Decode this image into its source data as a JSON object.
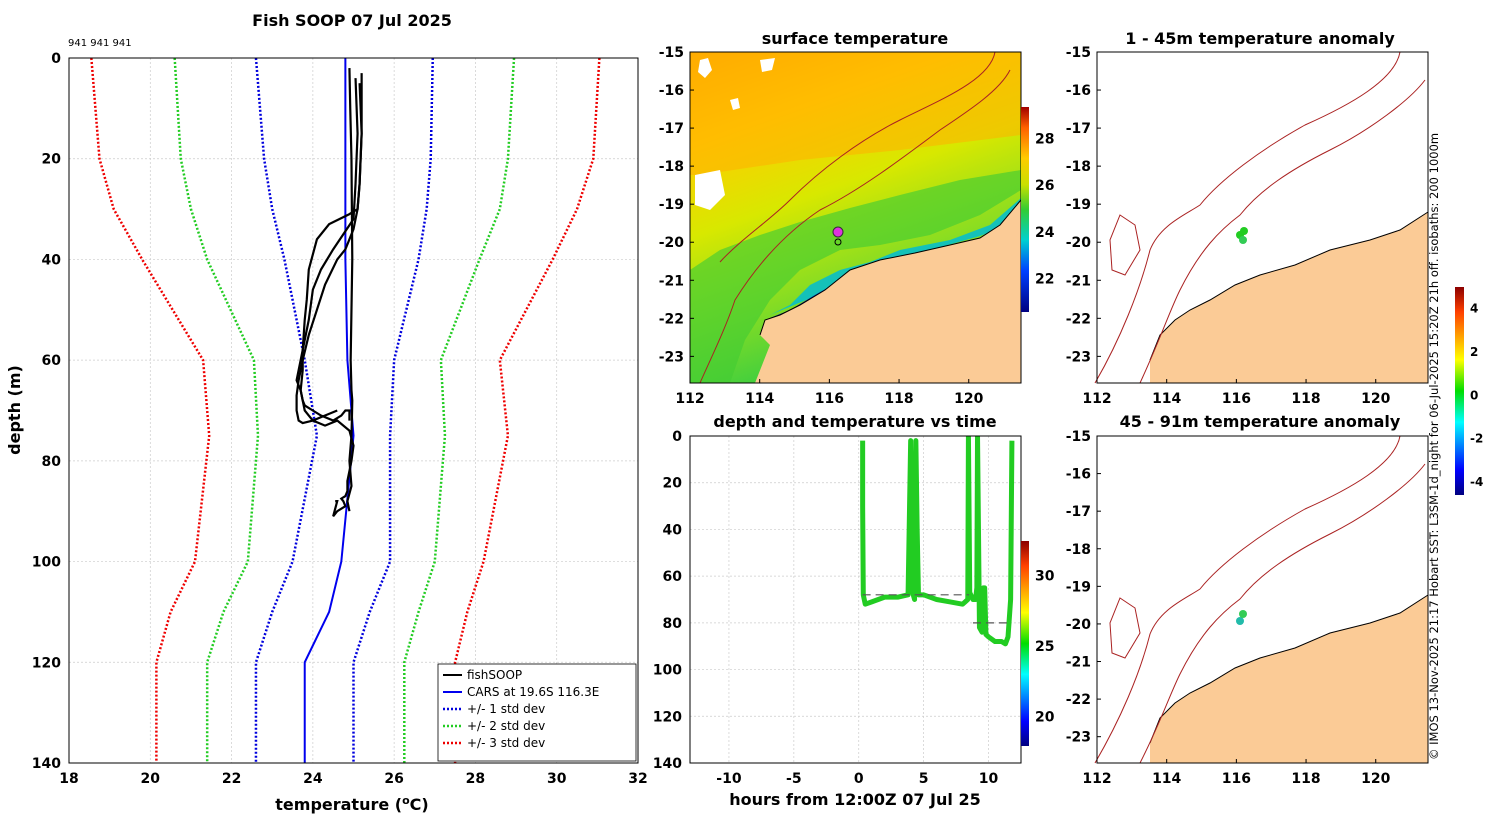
{
  "colors": {
    "land": "#fbcb96",
    "cars": "#0000ee",
    "std1": "#0000dd",
    "std2": "#22cc22",
    "std3": "#ee0000",
    "fish": "#000000",
    "track": "#22cc22",
    "isobath": "#aa2222"
  },
  "page": {
    "main_title": "Fish SOOP 07 Jul 2025",
    "ids": "941 941 941",
    "side_caption": "© IMOS 13-Nov-2025 21:17 Hobart SST: L3SM-1d_night for 06-Jul-2025 15:20Z 21h off. isobaths: 200  1000m"
  },
  "chart_data": [
    {
      "id": "profile",
      "type": "line",
      "title": "Fish SOOP 07 Jul 2025",
      "xlabel": "temperature (°C)",
      "xlabel_main": "temperature (",
      "xlabel_sup": "o",
      "xlabel_end": "C)",
      "ylabel": "depth (m)",
      "xlim": [
        18,
        32
      ],
      "ylim": [
        0,
        140
      ],
      "y_reversed": true,
      "xticks": [
        "18",
        "20",
        "22",
        "24",
        "26",
        "28",
        "30",
        "32"
      ],
      "yticks": [
        "0",
        "20",
        "40",
        "60",
        "80",
        "100",
        "120",
        "140"
      ],
      "legend": [
        "fishSOOP",
        "CARS at 19.6S 116.3E",
        "+/- 1 std dev",
        "+/- 2 std dev",
        "+/- 3 std dev"
      ],
      "legend_position": "bottom-right",
      "depths": [
        0,
        20,
        30,
        40,
        60,
        75,
        100,
        110,
        120,
        140
      ],
      "series": [
        {
          "name": "CARS",
          "values": [
            24.8,
            24.8,
            24.8,
            24.8,
            24.85,
            25.0,
            24.7,
            24.4,
            23.8,
            23.8
          ]
        },
        {
          "name": "-1 std",
          "values": [
            22.6,
            22.8,
            23.0,
            23.3,
            23.8,
            24.1,
            23.5,
            23.0,
            22.6,
            22.6
          ]
        },
        {
          "name": "+1 std",
          "values": [
            26.95,
            26.9,
            26.8,
            26.6,
            26.0,
            25.9,
            25.9,
            25.4,
            25.0,
            25.0
          ]
        },
        {
          "name": "-2 std",
          "values": [
            20.6,
            20.75,
            21.0,
            21.4,
            22.55,
            22.65,
            22.4,
            21.8,
            21.4,
            21.4
          ]
        },
        {
          "name": "+2 std",
          "values": [
            28.95,
            28.8,
            28.6,
            28.1,
            27.15,
            27.25,
            27.0,
            26.6,
            26.25,
            26.25
          ]
        },
        {
          "name": "-3 std",
          "values": [
            18.55,
            18.75,
            19.1,
            19.8,
            21.3,
            21.45,
            21.1,
            20.5,
            20.15,
            20.15
          ]
        },
        {
          "name": "+3 std",
          "values": [
            31.05,
            30.9,
            30.5,
            29.9,
            28.6,
            28.8,
            28.2,
            27.8,
            27.5,
            27.5
          ]
        }
      ],
      "fish_casts": [
        {
          "t": [
            24.9,
            24.92,
            24.95,
            24.96,
            24.97,
            24.95,
            24.93,
            24.95,
            24.97,
            24.96,
            24.95,
            24.9,
            24.95,
            24.85,
            24.9
          ],
          "d": [
            2,
            10,
            20,
            30,
            40,
            50,
            60,
            66,
            68,
            72,
            75,
            80,
            85,
            88,
            90
          ]
        },
        {
          "t": [
            25.2,
            25.2,
            25.15,
            25.1,
            24.9,
            24.4,
            24.1,
            23.9,
            23.85,
            23.8,
            23.75,
            23.75,
            23.7,
            23.75,
            23.8,
            24.0,
            24.2,
            24.5,
            24.7,
            24.8,
            24.9,
            24.9
          ],
          "d": [
            3,
            15,
            25,
            30,
            31,
            33,
            36,
            42,
            48,
            52,
            58,
            62,
            66,
            68,
            69,
            70,
            71,
            72,
            71,
            70,
            70,
            72
          ]
        },
        {
          "t": [
            25.05,
            25.1,
            25.05,
            25.0,
            24.5,
            24.2,
            24.0,
            23.9,
            23.8,
            23.7,
            23.6,
            23.7,
            23.8,
            23.9,
            24.0,
            24.3,
            24.6,
            24.9,
            25.0,
            24.95,
            24.9,
            24.85,
            24.85,
            24.8,
            24.7,
            24.75,
            24.8,
            24.7,
            24.6,
            24.5,
            24.6,
            24.55
          ],
          "d": [
            4,
            15,
            25,
            32,
            38,
            42,
            46,
            52,
            56,
            60,
            64,
            66,
            70,
            71,
            72,
            73,
            72,
            74,
            77,
            80,
            82,
            84,
            86,
            87,
            87.5,
            88,
            89,
            89.5,
            90,
            91,
            88,
            88
          ]
        },
        {
          "t": [
            25.15,
            25.2,
            25.15,
            25.1,
            25.0,
            24.9,
            24.8,
            24.6,
            24.3,
            24.1,
            23.9,
            23.75,
            23.65,
            23.6,
            23.6,
            23.65,
            23.75,
            24.0,
            24.3,
            24.6
          ],
          "d": [
            5,
            15,
            25,
            30,
            34,
            36,
            38,
            40,
            45,
            50,
            55,
            60,
            64,
            67,
            70,
            72,
            72.5,
            72,
            71,
            70
          ]
        }
      ]
    },
    {
      "id": "depth_time",
      "type": "scatter",
      "title": "depth and temperature vs time",
      "xlabel": "hours from 12:00Z 07 Jul 25",
      "xlim": [
        -13,
        12.5
      ],
      "ylim": [
        0,
        140
      ],
      "y_reversed": true,
      "xticks": [
        "-10",
        "-5",
        "0",
        "5",
        "10"
      ],
      "xtick_values": [
        -10,
        -5,
        0,
        5,
        10
      ],
      "yticks": [
        "0",
        "20",
        "40",
        "60",
        "80",
        "100",
        "120",
        "140"
      ],
      "colorbar_ticks": [
        "20",
        "25",
        "30"
      ],
      "colorbar_range": [
        18,
        32.5
      ],
      "track_hours": [
        0.3,
        0.3,
        0.35,
        0.5,
        1.0,
        2.0,
        3.0,
        3.8,
        4.0,
        4.1,
        4.2,
        4.3,
        4.4,
        4.5,
        4.6,
        4.7,
        5.0,
        6.0,
        7.0,
        8.0,
        8.2,
        8.4,
        8.45,
        8.55,
        8.8,
        9.0,
        9.1,
        9.15,
        9.3,
        9.5,
        9.6,
        9.7,
        9.8,
        10.0,
        10.5,
        11.0,
        11.3,
        11.5,
        11.7,
        11.8
      ],
      "track_depths": [
        2,
        30,
        68,
        72,
        71,
        69,
        69,
        68,
        2,
        65,
        68,
        70,
        2,
        40,
        68,
        68,
        68,
        70,
        71,
        72,
        71,
        70,
        0,
        67,
        70,
        70,
        65,
        0,
        82,
        84,
        65,
        65,
        85,
        86,
        88,
        88,
        89,
        86,
        70,
        2
      ],
      "reference_lines": [
        {
          "x": [
            0.3,
            8.5
          ],
          "depth": 68
        },
        {
          "x": [
            8.8,
            11.8
          ],
          "depth": 80
        }
      ]
    },
    {
      "id": "sst_map",
      "type": "heatmap",
      "title": "surface temperature",
      "xticks": [
        "112",
        "114",
        "116",
        "118",
        "120"
      ],
      "yticks": [
        "-15",
        "-16",
        "-17",
        "-18",
        "-19",
        "-20",
        "-21",
        "-22",
        "-23"
      ],
      "lon_range": [
        112,
        121.5
      ],
      "lat_range": [
        -15,
        -23.7
      ],
      "colorbar_ticks": [
        "22",
        "24",
        "26",
        "28"
      ]
    },
    {
      "id": "anomaly_1_45",
      "type": "heatmap",
      "title": "1 - 45m temperature anomaly",
      "xticks": [
        "112",
        "114",
        "116",
        "118",
        "120"
      ],
      "yticks": [
        "-15",
        "-16",
        "-17",
        "-18",
        "-19",
        "-20",
        "-21",
        "-22",
        "-23"
      ],
      "colorbar_ticks": [
        "4",
        "2",
        "0",
        "-2",
        "-4"
      ]
    },
    {
      "id": "anomaly_45_91",
      "type": "heatmap",
      "title": "45 - 91m temperature anomaly",
      "xticks": [
        "112",
        "114",
        "116",
        "118",
        "120"
      ],
      "yticks": [
        "-15",
        "-16",
        "-17",
        "-18",
        "-19",
        "-20",
        "-21",
        "-22",
        "-23"
      ]
    }
  ]
}
